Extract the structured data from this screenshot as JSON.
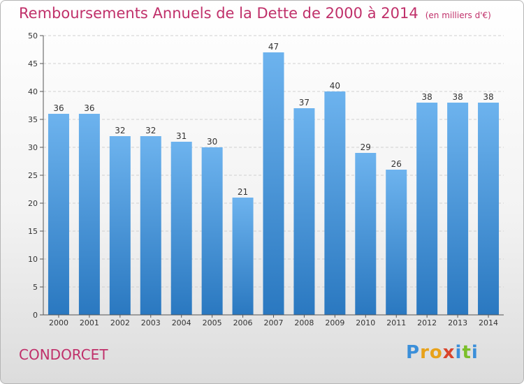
{
  "header": {
    "title": "Remboursements Annuels de la Dette de 2000 à 2014",
    "subtitle": "(en milliers d'€)"
  },
  "footer": {
    "commune": "CONDORCET",
    "logo_letters": [
      "P",
      "r",
      "o",
      "x",
      "i",
      "t",
      "i"
    ]
  },
  "chart_data": {
    "type": "bar",
    "title": "Remboursements Annuels de la Dette de 2000 à 2014",
    "subtitle": "(en milliers d'€)",
    "xlabel": "",
    "ylabel": "",
    "categories": [
      "2000",
      "2001",
      "2002",
      "2003",
      "2004",
      "2005",
      "2006",
      "2007",
      "2008",
      "2009",
      "2010",
      "2011",
      "2012",
      "2013",
      "2014"
    ],
    "values": [
      36,
      36,
      32,
      32,
      31,
      30,
      21,
      47,
      37,
      40,
      29,
      26,
      38,
      38,
      38
    ],
    "ylim": [
      0,
      50
    ],
    "yticks": [
      0,
      5,
      10,
      15,
      20,
      25,
      30,
      35,
      40,
      45,
      50
    ],
    "grid": true,
    "bar_color": "#3d8fd6",
    "title_color": "#c0306a"
  }
}
